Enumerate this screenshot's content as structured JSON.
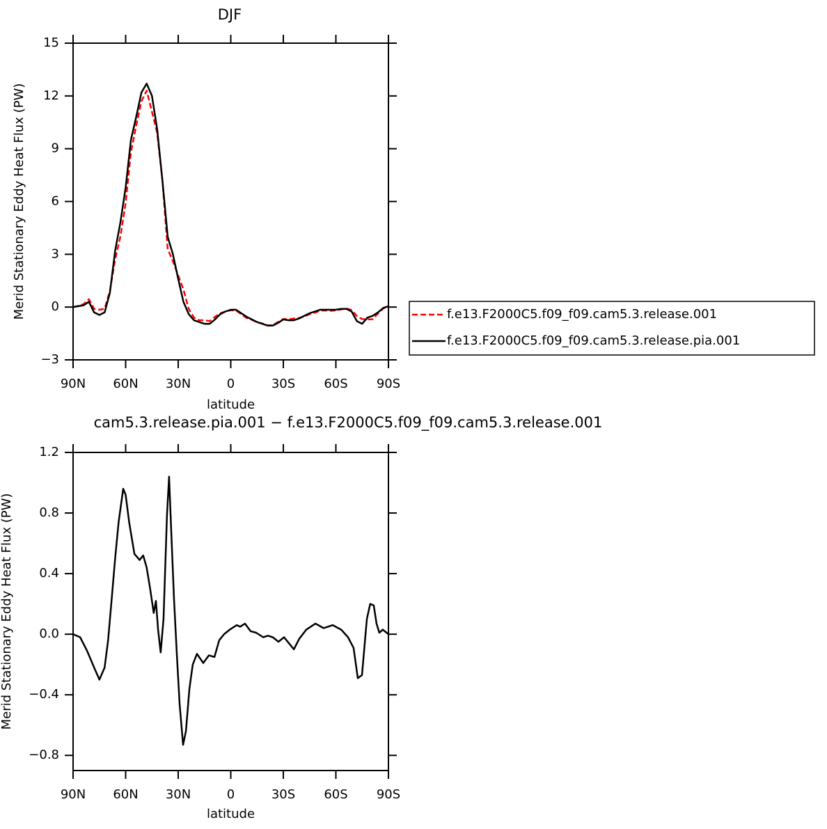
{
  "chart_data": [
    {
      "type": "line",
      "title": "DJF",
      "ylabel": "Merid Stationary Eddy Heat Flux (PW)",
      "xlabel": "latitude",
      "x": [
        90,
        87,
        84,
        81,
        78,
        75,
        72,
        69,
        66,
        63,
        60,
        57,
        54,
        51,
        48,
        45,
        42,
        39,
        36,
        33,
        30,
        27,
        24,
        21,
        18,
        15,
        12,
        9,
        6,
        3,
        0,
        -3,
        -6,
        -9,
        -12,
        -15,
        -18,
        -21,
        -24,
        -27,
        -30,
        -33,
        -36,
        -39,
        -42,
        -45,
        -48,
        -51,
        -54,
        -57,
        -60,
        -63,
        -66,
        -69,
        -72,
        -75,
        -78,
        -81,
        -84,
        -87,
        -90
      ],
      "series": [
        {
          "name": "f.e13.F2000C5.f09_f09.cam5.3.release.001",
          "color": "#ff0000",
          "line_style": "dashed",
          "values": [
            0,
            0.07,
            0.17,
            0.45,
            -0.1,
            -0.15,
            -0.1,
            0.9,
            2.7,
            4.0,
            5.9,
            8.8,
            10.3,
            11.7,
            12.3,
            11.1,
            9.9,
            7.2,
            3.3,
            2.6,
            1.8,
            1.0,
            -0.1,
            -0.6,
            -0.75,
            -0.75,
            -0.8,
            -0.55,
            -0.35,
            -0.25,
            -0.18,
            -0.2,
            -0.4,
            -0.62,
            -0.72,
            -0.86,
            -0.93,
            -1.04,
            -1.03,
            -0.85,
            -0.68,
            -0.69,
            -0.65,
            -0.62,
            -0.53,
            -0.4,
            -0.32,
            -0.2,
            -0.19,
            -0.21,
            -0.19,
            -0.13,
            -0.08,
            -0.17,
            -0.51,
            -0.68,
            -0.7,
            -0.69,
            -0.37,
            -0.08,
            0.05
          ]
        },
        {
          "name": "f.e13.F2000C5.f09_f09.cam5.3.release.pia.001",
          "color": "#000000",
          "line_style": "solid",
          "values": [
            0,
            0.05,
            0.1,
            0.3,
            -0.3,
            -0.45,
            -0.3,
            0.8,
            3.2,
            4.8,
            6.8,
            9.5,
            10.8,
            12.2,
            12.7,
            12.0,
            10.1,
            7.2,
            4.0,
            3.0,
            1.6,
            0.3,
            -0.4,
            -0.75,
            -0.85,
            -0.95,
            -0.95,
            -0.7,
            -0.4,
            -0.25,
            -0.15,
            -0.15,
            -0.35,
            -0.55,
            -0.7,
            -0.85,
            -0.95,
            -1.05,
            -1.05,
            -0.9,
            -0.7,
            -0.75,
            -0.75,
            -0.65,
            -0.5,
            -0.35,
            -0.25,
            -0.15,
            -0.15,
            -0.15,
            -0.15,
            -0.1,
            -0.1,
            -0.25,
            -0.8,
            -0.95,
            -0.6,
            -0.5,
            -0.3,
            -0.05,
            0.05
          ]
        }
      ],
      "xlim": [
        90,
        -90
      ],
      "xticks": [
        {
          "value": 90,
          "label": "90N"
        },
        {
          "value": 60,
          "label": "60N"
        },
        {
          "value": 30,
          "label": "30N"
        },
        0,
        {
          "value": -30,
          "label": "30S"
        },
        {
          "value": -60,
          "label": "60S"
        },
        {
          "value": -90,
          "label": "90S"
        }
      ],
      "ylim": [
        -3,
        15
      ],
      "yticks": [
        15,
        12,
        9,
        6,
        3,
        0,
        {
          "value": -3,
          "label": "−3"
        }
      ],
      "legend": "right"
    },
    {
      "type": "line",
      "title": "cam5.3.release.pia.001 − f.e13.F2000C5.f09_f09.cam5.3.release.001",
      "ylabel": "Merid Stationary Eddy Heat Flux (PW)",
      "xlabel": "latitude",
      "color": "#000000",
      "x": [
        90,
        86,
        82,
        78,
        75,
        72,
        70,
        68,
        66,
        64,
        61.4,
        60,
        58,
        55,
        52,
        50,
        48,
        46,
        44,
        42.7,
        41.5,
        40,
        38.4,
        36.4,
        35.2,
        34,
        32.4,
        30.8,
        29.2,
        27.2,
        25.6,
        23.6,
        21.7,
        19.3,
        15.7,
        12.5,
        9.3,
        6.6,
        3.8,
        0.6,
        -3.4,
        -5.4,
        -8.1,
        -11.3,
        -14.5,
        -18.5,
        -21.2,
        -24,
        -27.2,
        -30.4,
        -33.2,
        -36,
        -39.1,
        -43.1,
        -48.3,
        -53,
        -58.2,
        -63,
        -66.9,
        -70.1,
        -72.5,
        -74.9,
        -77.7,
        -79.6,
        -81.6,
        -83.2,
        -84.8,
        -86.8,
        -90
      ],
      "values": [
        0,
        -0.02,
        -0.11,
        -0.22,
        -0.3,
        -0.22,
        -0.04,
        0.23,
        0.5,
        0.74,
        0.96,
        0.92,
        0.74,
        0.53,
        0.49,
        0.52,
        0.44,
        0.3,
        0.14,
        0.22,
        0.03,
        -0.12,
        0.1,
        0.79,
        1.04,
        0.69,
        0.23,
        -0.13,
        -0.46,
        -0.73,
        -0.64,
        -0.36,
        -0.2,
        -0.13,
        -0.19,
        -0.14,
        -0.15,
        -0.04,
        0,
        0.03,
        0.06,
        0.05,
        0.07,
        0.02,
        0.01,
        -0.02,
        -0.01,
        -0.02,
        -0.05,
        -0.02,
        -0.06,
        -0.1,
        -0.03,
        0.03,
        0.07,
        0.04,
        0.06,
        0.03,
        -0.02,
        -0.09,
        -0.29,
        -0.27,
        0.1,
        0.2,
        0.19,
        0.07,
        0.01,
        0.03,
        0
      ],
      "xlim": [
        90,
        -90
      ],
      "xticks": [
        {
          "value": 90,
          "label": "90N"
        },
        {
          "value": 60,
          "label": "60N"
        },
        {
          "value": 30,
          "label": "30N"
        },
        0,
        {
          "value": -30,
          "label": "30S"
        },
        {
          "value": -60,
          "label": "60S"
        },
        {
          "value": -90,
          "label": "90S"
        }
      ],
      "ylim": [
        -0.9,
        1.2
      ],
      "yticks": [
        1.2,
        0.8,
        0.4,
        {
          "value": 0,
          "label": "0.0"
        },
        {
          "value": -0.4,
          "label": "−0.4"
        },
        {
          "value": -0.8,
          "label": "−0.8"
        }
      ]
    }
  ]
}
